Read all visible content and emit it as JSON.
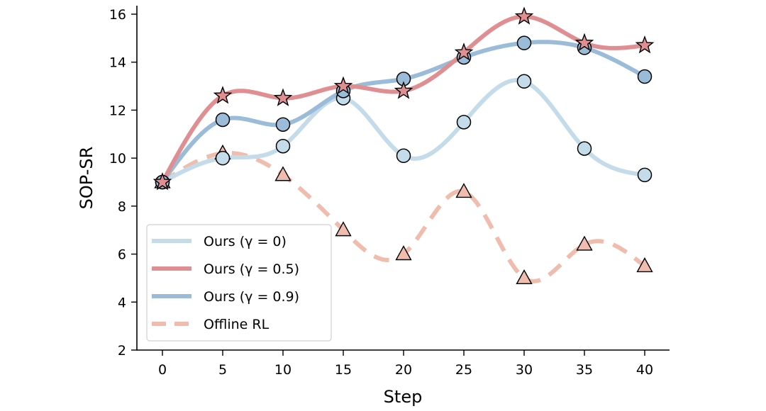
{
  "chart_data": {
    "type": "line",
    "title": "",
    "xlabel": "Step",
    "ylabel": "SOP-SR",
    "x": [
      0,
      5,
      10,
      15,
      20,
      25,
      30,
      35,
      40
    ],
    "xticks": [
      "0",
      "5",
      "10",
      "15",
      "20",
      "25",
      "30",
      "35",
      "40"
    ],
    "yticks": [
      "2",
      "4",
      "6",
      "8",
      "10",
      "12",
      "14",
      "16"
    ],
    "xlim": [
      -2,
      42
    ],
    "ylim": [
      2,
      16.3
    ],
    "grid": false,
    "legend_position": "lower-left",
    "series": [
      {
        "name": "Ours (γ = 0)",
        "values": [
          9.0,
          10.0,
          10.5,
          12.5,
          10.1,
          11.5,
          13.2,
          10.4,
          9.3
        ],
        "color": "#c4dbea",
        "marker": "circle",
        "dashed": false
      },
      {
        "name": "Ours (γ = 0.5)",
        "values": [
          9.0,
          12.6,
          12.5,
          13.0,
          12.8,
          14.4,
          15.9,
          14.8,
          14.7
        ],
        "color": "#df8e92",
        "marker": "star",
        "dashed": false
      },
      {
        "name": "Ours (γ = 0.9)",
        "values": [
          9.0,
          11.6,
          11.4,
          12.8,
          13.3,
          14.2,
          14.8,
          14.6,
          13.4
        ],
        "color": "#9bbcd8",
        "marker": "circle",
        "dashed": false
      },
      {
        "name": "Offline RL",
        "values": [
          9.0,
          10.2,
          9.3,
          7.0,
          6.0,
          8.6,
          5.0,
          6.4,
          5.5
        ],
        "color": "#efbcad",
        "marker": "triangle",
        "dashed": true
      }
    ]
  }
}
